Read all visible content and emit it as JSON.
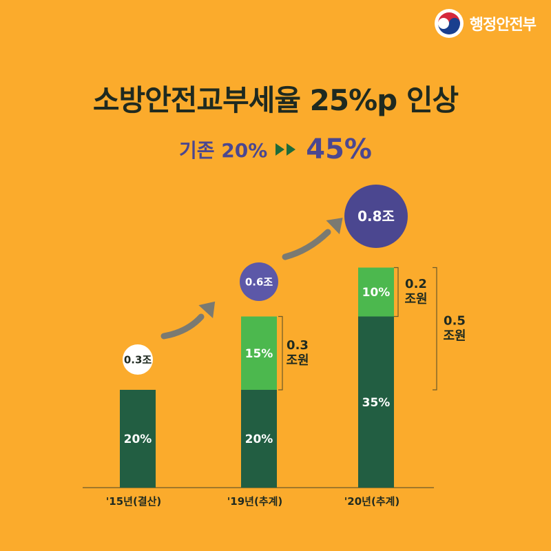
{
  "header": {
    "ministry_name": "행정안전부",
    "title": "소방안전교부세율 25%p 인상",
    "subtitle_prefix": "기존 20%",
    "subtitle_new": "45%"
  },
  "colors": {
    "background": "#FBAB2C",
    "base_green": "#225E42",
    "increase_green": "#4CB84E",
    "bubble_purple": "#4B4790",
    "bubble_light_purple": "#5C58A8",
    "arrow_gray": "#7A7A72"
  },
  "chart_data": {
    "type": "bar",
    "stacked": true,
    "categories": [
      "'15년(결산)",
      "'19년(추계)",
      "'20년(추계)"
    ],
    "series": [
      {
        "values": [
          20,
          20,
          35
        ],
        "labels": [
          "20%",
          "20%",
          "35%"
        ]
      },
      {
        "values": [
          0,
          15,
          10
        ],
        "labels": [
          "",
          "15%",
          "10%"
        ]
      }
    ],
    "totals": [
      "0.3조",
      "0.6조",
      "0.8조"
    ],
    "increase_brackets": [
      {
        "category_index": 1,
        "value_from": 20,
        "value_to": 35,
        "label_line1": "0.3",
        "label_line2": "조원"
      },
      {
        "category_index": 2,
        "value_from": 35,
        "value_to": 45,
        "label_line1": "0.2",
        "label_line2": "조원"
      },
      {
        "category_index": 2,
        "value_from": 20,
        "value_to": 45,
        "label_line1": "0.5",
        "label_line2": "조원"
      }
    ],
    "ylim": [
      0,
      45
    ]
  }
}
